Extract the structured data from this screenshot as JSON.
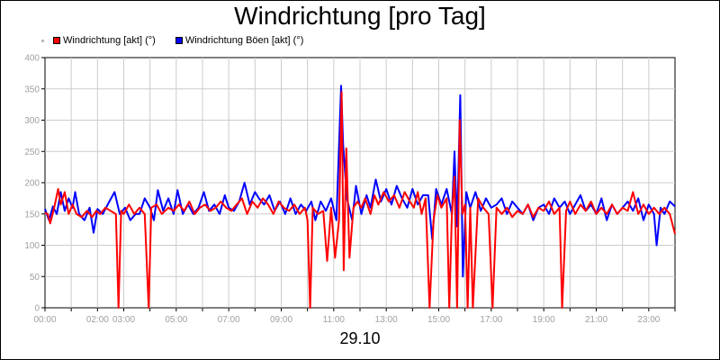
{
  "chart_data": {
    "type": "line",
    "title": "Windrichtung [pro Tag]",
    "date_label": "29.10",
    "xlabel": "",
    "ylabel": "",
    "ylim": [
      0,
      400
    ],
    "xlim": [
      0,
      24
    ],
    "y_ticks": [
      "0",
      "50",
      "100",
      "150",
      "200",
      "250",
      "300",
      "350",
      "400"
    ],
    "x_ticks": [
      {
        "t": 0,
        "label": "00:00"
      },
      {
        "t": 2,
        "label": "02:00"
      },
      {
        "t": 3,
        "label": "03:00"
      },
      {
        "t": 5,
        "label": "05:00"
      },
      {
        "t": 7,
        "label": "07:00"
      },
      {
        "t": 9,
        "label": "09:00"
      },
      {
        "t": 11,
        "label": "11:00"
      },
      {
        "t": 13,
        "label": "13:00"
      },
      {
        "t": 15,
        "label": "15:00"
      },
      {
        "t": 17,
        "label": "17:00"
      },
      {
        "t": 19,
        "label": "19:00"
      },
      {
        "t": 21,
        "label": "21:00"
      },
      {
        "t": 23,
        "label": "23:00"
      }
    ],
    "grid": true,
    "legend_position": "top-left",
    "series": [
      {
        "name": "Windrichtung [akt] (°)",
        "color": "#ff0000",
        "points": [
          [
            0.0,
            152
          ],
          [
            0.1,
            150
          ],
          [
            0.2,
            135
          ],
          [
            0.35,
            160
          ],
          [
            0.5,
            190
          ],
          [
            0.6,
            165
          ],
          [
            0.75,
            185
          ],
          [
            0.9,
            150
          ],
          [
            1.05,
            165
          ],
          [
            1.2,
            150
          ],
          [
            1.4,
            145
          ],
          [
            1.6,
            155
          ],
          [
            1.8,
            145
          ],
          [
            1.95,
            155
          ],
          [
            2.1,
            150
          ],
          [
            2.3,
            160
          ],
          [
            2.5,
            155
          ],
          [
            2.7,
            150
          ],
          [
            2.8,
            0
          ],
          [
            2.9,
            155
          ],
          [
            3.0,
            150
          ],
          [
            3.2,
            165
          ],
          [
            3.4,
            150
          ],
          [
            3.6,
            160
          ],
          [
            3.8,
            150
          ],
          [
            3.95,
            0
          ],
          [
            4.05,
            160
          ],
          [
            4.25,
            165
          ],
          [
            4.45,
            150
          ],
          [
            4.7,
            160
          ],
          [
            4.9,
            155
          ],
          [
            5.1,
            165
          ],
          [
            5.3,
            155
          ],
          [
            5.5,
            170
          ],
          [
            5.7,
            150
          ],
          [
            5.9,
            160
          ],
          [
            6.1,
            165
          ],
          [
            6.3,
            155
          ],
          [
            6.5,
            160
          ],
          [
            6.7,
            170
          ],
          [
            6.9,
            160
          ],
          [
            7.1,
            155
          ],
          [
            7.3,
            165
          ],
          [
            7.5,
            175
          ],
          [
            7.7,
            150
          ],
          [
            7.9,
            170
          ],
          [
            8.1,
            160
          ],
          [
            8.3,
            175
          ],
          [
            8.5,
            165
          ],
          [
            8.7,
            150
          ],
          [
            8.9,
            170
          ],
          [
            9.1,
            160
          ],
          [
            9.3,
            155
          ],
          [
            9.5,
            165
          ],
          [
            9.7,
            150
          ],
          [
            9.9,
            160
          ],
          [
            10.0,
            140
          ],
          [
            10.1,
            0
          ],
          [
            10.2,
            160
          ],
          [
            10.4,
            150
          ],
          [
            10.6,
            155
          ],
          [
            10.75,
            75
          ],
          [
            10.9,
            160
          ],
          [
            11.05,
            80
          ],
          [
            11.2,
            140
          ],
          [
            11.3,
            345
          ],
          [
            11.38,
            60
          ],
          [
            11.48,
            255
          ],
          [
            11.6,
            80
          ],
          [
            11.75,
            160
          ],
          [
            11.9,
            170
          ],
          [
            12.05,
            160
          ],
          [
            12.2,
            175
          ],
          [
            12.4,
            150
          ],
          [
            12.55,
            180
          ],
          [
            12.7,
            165
          ],
          [
            12.9,
            185
          ],
          [
            13.1,
            170
          ],
          [
            13.3,
            180
          ],
          [
            13.5,
            160
          ],
          [
            13.7,
            185
          ],
          [
            13.9,
            170
          ],
          [
            14.05,
            160
          ],
          [
            14.2,
            185
          ],
          [
            14.35,
            150
          ],
          [
            14.5,
            175
          ],
          [
            14.65,
            0
          ],
          [
            14.8,
            140
          ],
          [
            14.95,
            180
          ],
          [
            15.1,
            160
          ],
          [
            15.3,
            175
          ],
          [
            15.4,
            0
          ],
          [
            15.5,
            150
          ],
          [
            15.6,
            210
          ],
          [
            15.7,
            0
          ],
          [
            15.8,
            300
          ],
          [
            15.9,
            150
          ],
          [
            16.0,
            165
          ],
          [
            16.1,
            0
          ],
          [
            16.2,
            160
          ],
          [
            16.3,
            0
          ],
          [
            16.5,
            175
          ],
          [
            16.7,
            160
          ],
          [
            16.9,
            150
          ],
          [
            17.05,
            0
          ],
          [
            17.2,
            160
          ],
          [
            17.4,
            150
          ],
          [
            17.6,
            160
          ],
          [
            17.8,
            145
          ],
          [
            18.0,
            155
          ],
          [
            18.2,
            150
          ],
          [
            18.4,
            165
          ],
          [
            18.6,
            145
          ],
          [
            18.8,
            160
          ],
          [
            19.0,
            155
          ],
          [
            19.2,
            170
          ],
          [
            19.4,
            150
          ],
          [
            19.6,
            160
          ],
          [
            19.7,
            0
          ],
          [
            19.85,
            155
          ],
          [
            20.0,
            170
          ],
          [
            20.2,
            150
          ],
          [
            20.4,
            165
          ],
          [
            20.6,
            155
          ],
          [
            20.8,
            170
          ],
          [
            21.0,
            150
          ],
          [
            21.2,
            160
          ],
          [
            21.4,
            150
          ],
          [
            21.6,
            165
          ],
          [
            21.8,
            150
          ],
          [
            22.0,
            160
          ],
          [
            22.2,
            155
          ],
          [
            22.4,
            185
          ],
          [
            22.6,
            150
          ],
          [
            22.8,
            165
          ],
          [
            23.0,
            150
          ],
          [
            23.2,
            160
          ],
          [
            23.4,
            150
          ],
          [
            23.6,
            160
          ],
          [
            23.8,
            150
          ],
          [
            24.0,
            118
          ]
        ]
      },
      {
        "name": "Windrichtung Böen [akt] (°)",
        "color": "#0000ff",
        "points": [
          [
            0.0,
            158
          ],
          [
            0.15,
            140
          ],
          [
            0.3,
            162
          ],
          [
            0.45,
            150
          ],
          [
            0.6,
            185
          ],
          [
            0.75,
            155
          ],
          [
            0.9,
            175
          ],
          [
            1.05,
            160
          ],
          [
            1.15,
            185
          ],
          [
            1.3,
            150
          ],
          [
            1.5,
            140
          ],
          [
            1.7,
            160
          ],
          [
            1.85,
            120
          ],
          [
            2.0,
            158
          ],
          [
            2.2,
            150
          ],
          [
            2.45,
            170
          ],
          [
            2.65,
            185
          ],
          [
            2.85,
            150
          ],
          [
            3.05,
            160
          ],
          [
            3.25,
            140
          ],
          [
            3.45,
            150
          ],
          [
            3.6,
            150
          ],
          [
            3.8,
            175
          ],
          [
            4.0,
            160
          ],
          [
            4.15,
            140
          ],
          [
            4.3,
            188
          ],
          [
            4.5,
            155
          ],
          [
            4.7,
            175
          ],
          [
            4.9,
            150
          ],
          [
            5.05,
            188
          ],
          [
            5.25,
            150
          ],
          [
            5.45,
            165
          ],
          [
            5.65,
            150
          ],
          [
            5.85,
            160
          ],
          [
            6.05,
            185
          ],
          [
            6.25,
            155
          ],
          [
            6.45,
            165
          ],
          [
            6.65,
            150
          ],
          [
            6.85,
            180
          ],
          [
            7.0,
            160
          ],
          [
            7.2,
            155
          ],
          [
            7.4,
            170
          ],
          [
            7.6,
            200
          ],
          [
            7.8,
            165
          ],
          [
            8.0,
            185
          ],
          [
            8.15,
            175
          ],
          [
            8.35,
            165
          ],
          [
            8.55,
            180
          ],
          [
            8.75,
            155
          ],
          [
            8.95,
            170
          ],
          [
            9.15,
            150
          ],
          [
            9.35,
            175
          ],
          [
            9.55,
            150
          ],
          [
            9.75,
            165
          ],
          [
            9.95,
            155
          ],
          [
            10.15,
            170
          ],
          [
            10.3,
            140
          ],
          [
            10.5,
            170
          ],
          [
            10.7,
            155
          ],
          [
            10.9,
            175
          ],
          [
            11.1,
            140
          ],
          [
            11.28,
            355
          ],
          [
            11.36,
            260
          ],
          [
            11.5,
            175
          ],
          [
            11.7,
            140
          ],
          [
            11.85,
            195
          ],
          [
            12.05,
            150
          ],
          [
            12.25,
            180
          ],
          [
            12.4,
            160
          ],
          [
            12.6,
            205
          ],
          [
            12.8,
            170
          ],
          [
            13.0,
            190
          ],
          [
            13.2,
            165
          ],
          [
            13.4,
            195
          ],
          [
            13.6,
            175
          ],
          [
            13.8,
            160
          ],
          [
            14.0,
            190
          ],
          [
            14.2,
            165
          ],
          [
            14.4,
            180
          ],
          [
            14.6,
            180
          ],
          [
            14.75,
            110
          ],
          [
            14.9,
            190
          ],
          [
            15.1,
            165
          ],
          [
            15.3,
            190
          ],
          [
            15.5,
            150
          ],
          [
            15.6,
            250
          ],
          [
            15.7,
            130
          ],
          [
            15.82,
            340
          ],
          [
            15.92,
            50
          ],
          [
            16.05,
            185
          ],
          [
            16.2,
            160
          ],
          [
            16.4,
            185
          ],
          [
            16.6,
            155
          ],
          [
            16.8,
            175
          ],
          [
            17.0,
            160
          ],
          [
            17.2,
            165
          ],
          [
            17.4,
            175
          ],
          [
            17.6,
            150
          ],
          [
            17.8,
            170
          ],
          [
            18.0,
            160
          ],
          [
            18.2,
            150
          ],
          [
            18.4,
            165
          ],
          [
            18.6,
            140
          ],
          [
            18.8,
            160
          ],
          [
            19.0,
            165
          ],
          [
            19.2,
            150
          ],
          [
            19.4,
            175
          ],
          [
            19.6,
            160
          ],
          [
            19.8,
            170
          ],
          [
            20.0,
            150
          ],
          [
            20.2,
            165
          ],
          [
            20.4,
            180
          ],
          [
            20.6,
            155
          ],
          [
            20.8,
            165
          ],
          [
            21.0,
            150
          ],
          [
            21.2,
            175
          ],
          [
            21.4,
            140
          ],
          [
            21.6,
            165
          ],
          [
            21.8,
            150
          ],
          [
            22.0,
            160
          ],
          [
            22.2,
            170
          ],
          [
            22.4,
            155
          ],
          [
            22.6,
            175
          ],
          [
            22.8,
            140
          ],
          [
            23.0,
            165
          ],
          [
            23.2,
            150
          ],
          [
            23.3,
            100
          ],
          [
            23.45,
            160
          ],
          [
            23.6,
            150
          ],
          [
            23.8,
            170
          ],
          [
            24.0,
            162
          ]
        ]
      }
    ]
  }
}
